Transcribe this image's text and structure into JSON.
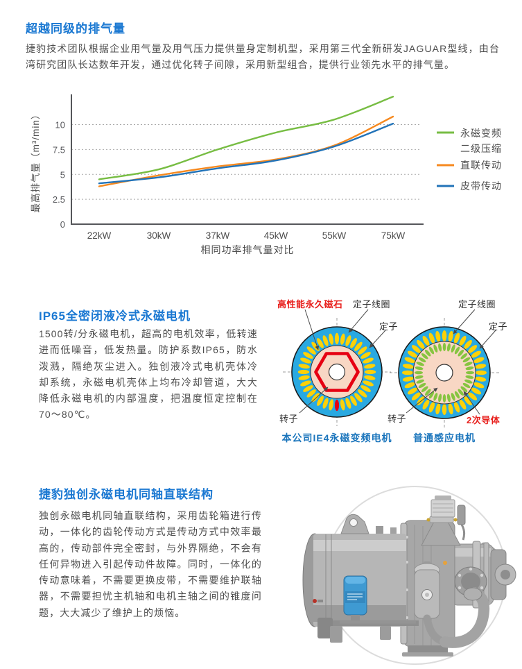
{
  "sections": {
    "exhaust": {
      "title": "超越同级的排气量",
      "body": "捷豹技术团队根据企业用气量及用气压力提供量身定制机型，采用第三代全新研发JAGUAR型线，由台湾研究团队长达数年开发，通过优化转子间隙，采用新型组合，提供行业领先水平的排气量。"
    },
    "motor": {
      "title": "IP65全密闭液冷式永磁电机",
      "body": "1500转/分永磁电机，超高的电机效率，低转速进而低噪音，低发热量。防护系数IP65，防水泼溅，隔绝灰尘进入。独创液冷式电机壳体冷却系统，永磁电机壳体上均布冷却管道，大大降低永磁电机的内部温度，把温度恒定控制在70～80℃。"
    },
    "drive": {
      "title": "捷豹独创永磁电机同轴直联结构",
      "body": "独创永磁电机同轴直联结构，采用齿轮箱进行传动，一体化的齿轮传动方式是传动方式中效率最高的，传动部件完全密封，与外界隔绝，不会有任何异物进入引起传动件故障。同时，一体化的传动意味着，不需要更换皮带，不需要维护联轴器，不需要担忧主机轴和电机主轴之间的锥度问题，大大减少了维护上的烦恼。"
    }
  },
  "chart_data": {
    "type": "line",
    "categories": [
      "22kW",
      "30kW",
      "37kW",
      "45kW",
      "55kW",
      "75kW"
    ],
    "series": [
      {
        "name": "永磁变频二级压缩",
        "legend_lines": [
          "永磁变频",
          "二级压缩"
        ],
        "color": "#77bd43",
        "values": [
          4.5,
          5.5,
          7.5,
          9.2,
          10.5,
          12.8
        ]
      },
      {
        "name": "直联传动",
        "legend_lines": [
          "直联传动"
        ],
        "color": "#f6891f",
        "values": [
          3.8,
          4.9,
          5.8,
          6.5,
          7.9,
          10.8
        ]
      },
      {
        "name": "皮带传动",
        "legend_lines": [
          "皮带传动"
        ],
        "color": "#2273b8",
        "values": [
          4.1,
          4.7,
          5.6,
          6.4,
          7.8,
          10.1
        ]
      }
    ],
    "xlabel": "相同功率排气量对比",
    "ylabel": "最高排气量（m³/min）",
    "yticks": [
      0,
      2.5,
      5,
      7.5,
      10
    ],
    "ylim": [
      0,
      13.5
    ],
    "grid": "horizontal-dotted",
    "legend_position": "right"
  },
  "motor_diagram": {
    "left": {
      "caption": "本公司IE4永磁变频电机",
      "labels": {
        "magnet": "高性能永久磁石",
        "stator_coil": "定子线圈",
        "stator": "定子",
        "rotor": "转子"
      }
    },
    "right": {
      "caption": "普通感应电机",
      "labels": {
        "stator_coil": "定子线圈",
        "stator": "定子",
        "rotor": "转子",
        "secondary_conductor": "2次导体"
      }
    },
    "colors": {
      "stator_ring": "#29a9e1",
      "coil_yellow": "#fdd108",
      "rotor_pink": "#f8d7c4",
      "magnet_red": "#e60012",
      "conductor_green": "#86c440",
      "label_red": "#e8201d",
      "caption_blue": "#1b75bc"
    }
  }
}
